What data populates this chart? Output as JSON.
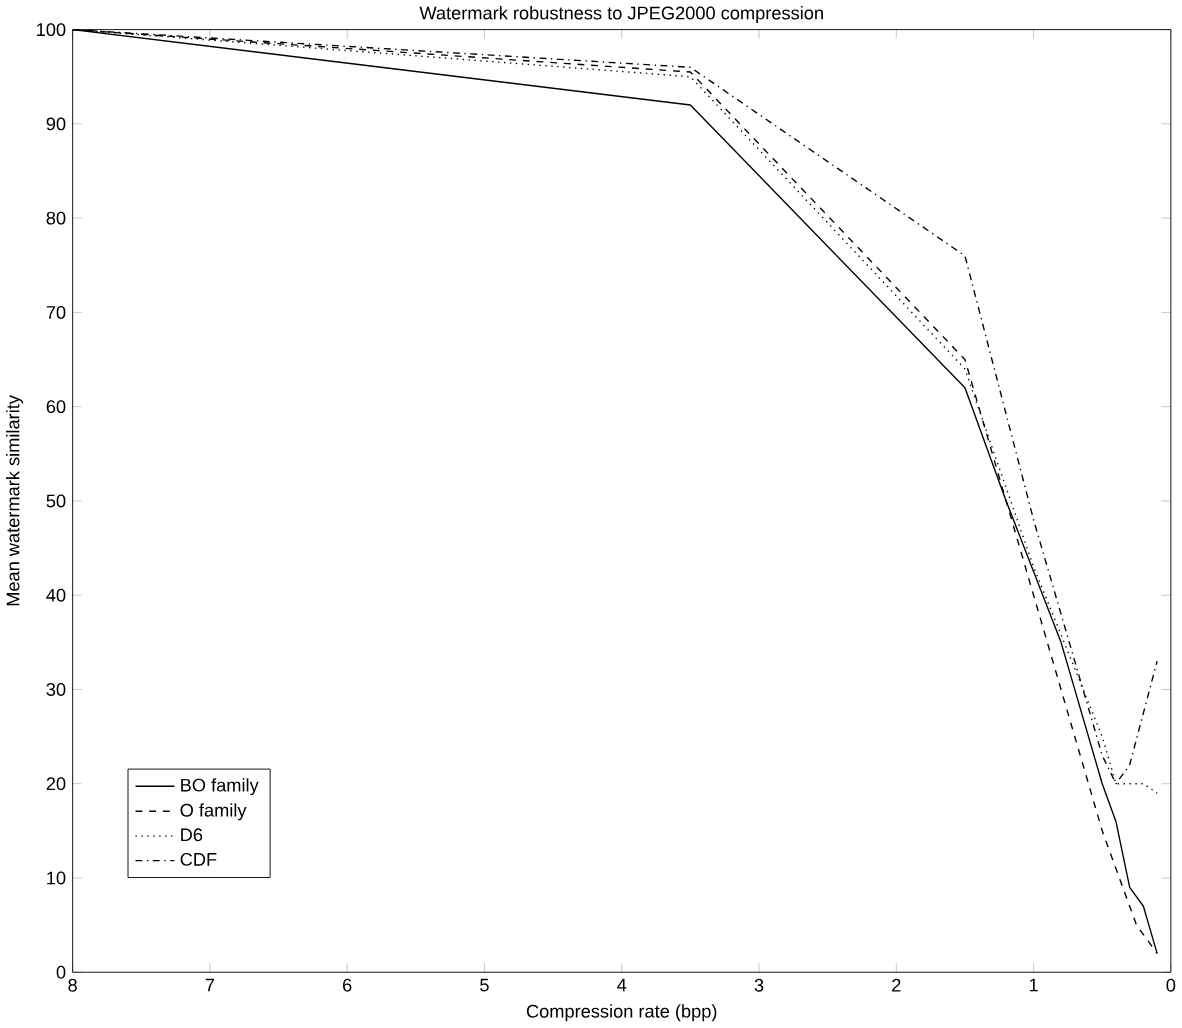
{
  "chart_data": {
    "type": "line",
    "title": "Watermark robustness to JPEG2000 compression",
    "xlabel": "Compression rate (bpp)",
    "ylabel": "Mean watermark similarity",
    "xlim": [
      8,
      0
    ],
    "ylim": [
      0,
      100
    ],
    "xticks": [
      8,
      7,
      6,
      5,
      4,
      3,
      2,
      1,
      0
    ],
    "yticks": [
      0,
      10,
      20,
      30,
      40,
      50,
      60,
      70,
      80,
      90,
      100
    ],
    "grid": false,
    "legend": "bottom left",
    "marker": "none",
    "series": [
      {
        "name": "BO family",
        "color": "#000000",
        "line_style": "solid",
        "x": [
          8,
          3.5,
          1.5,
          1.2,
          0.8,
          0.5,
          0.4,
          0.3,
          0.2,
          0.1
        ],
        "values": [
          100,
          92,
          62,
          50,
          35,
          20,
          16,
          9,
          7,
          2
        ]
      },
      {
        "name": "O family",
        "color": "#000000",
        "line_style": "dashed",
        "x": [
          8,
          3.5,
          1.5,
          1.0,
          0.8,
          0.5,
          0.25,
          0.1
        ],
        "values": [
          100,
          95.5,
          65,
          40,
          30,
          15,
          5,
          2
        ]
      },
      {
        "name": "D6",
        "color": "#000000",
        "line_style": "dotted",
        "x": [
          8,
          3.5,
          1.5,
          1.0,
          0.5,
          0.4,
          0.2,
          0.1
        ],
        "values": [
          100,
          95,
          64,
          43,
          25,
          20,
          20,
          19
        ]
      },
      {
        "name": "CDF",
        "color": "#000000",
        "line_style": "dashdotted",
        "x": [
          8,
          3.5,
          1.5,
          1.0,
          0.5,
          0.4,
          0.3,
          0.1
        ],
        "values": [
          100,
          96,
          76,
          48,
          23,
          20,
          22,
          33
        ]
      }
    ]
  }
}
